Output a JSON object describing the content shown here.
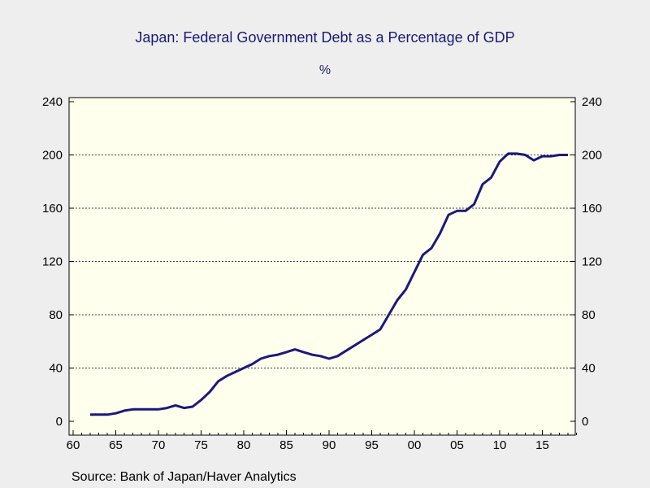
{
  "chart_data": {
    "type": "line",
    "title": "Japan: Federal Government Debt as a Percentage of GDP",
    "subtitle": "%",
    "xlabel": "",
    "ylabel": "",
    "source": "Source:  Bank of Japan/Haver Analytics",
    "x_ticks": [
      "60",
      "65",
      "70",
      "75",
      "80",
      "85",
      "90",
      "95",
      "00",
      "05",
      "10",
      "15"
    ],
    "y_ticks": [
      "0",
      "40",
      "80",
      "120",
      "160",
      "200",
      "240"
    ],
    "xlim": [
      1960,
      2019.5
    ],
    "ylim": [
      0,
      240
    ],
    "grid": true,
    "colors": {
      "line": "#1a1a7a",
      "plot_bg": "#ffffee",
      "page_bg": "#eeeeee"
    },
    "series": [
      {
        "x": [
          1962,
          1963,
          1964,
          1965,
          1966,
          1967,
          1968,
          1969,
          1970,
          1971,
          1972,
          1973,
          1974,
          1975,
          1976,
          1977,
          1978,
          1979,
          1980,
          1981,
          1982,
          1983,
          1984,
          1985,
          1986,
          1987,
          1988,
          1989,
          1990,
          1991,
          1992,
          1993,
          1994,
          1995,
          1996,
          1997,
          1998,
          1999,
          2000,
          2001,
          2002,
          2003,
          2004,
          2005,
          2006,
          2007,
          2008,
          2009,
          2010,
          2011,
          2012,
          2013,
          2014,
          2015,
          2016,
          2017,
          2018
        ],
        "values": [
          5,
          5,
          5,
          6,
          8,
          9,
          9,
          9,
          9,
          10,
          12,
          10,
          11,
          16,
          22,
          30,
          34,
          37,
          40,
          43,
          47,
          49,
          50,
          52,
          54,
          52,
          50,
          49,
          47,
          49,
          53,
          57,
          61,
          65,
          69,
          80,
          91,
          99,
          112,
          125,
          130,
          141,
          155,
          158,
          158,
          163,
          178,
          183,
          195,
          201,
          201,
          200,
          196,
          199,
          199,
          200,
          200
        ]
      }
    ]
  }
}
